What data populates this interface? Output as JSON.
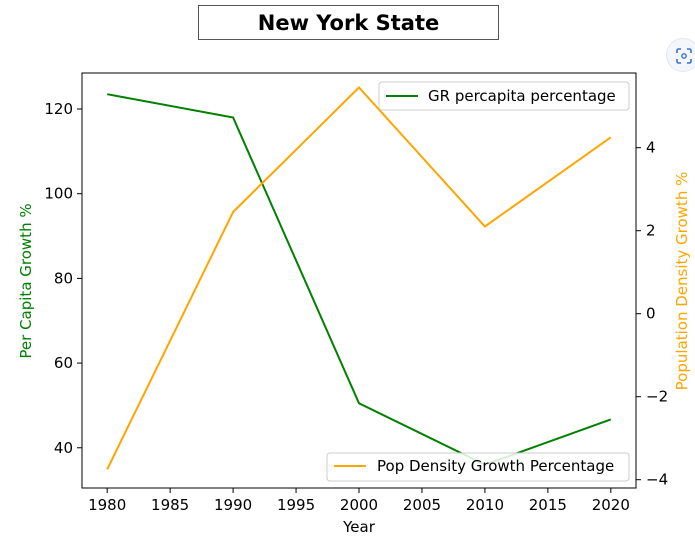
{
  "chart_data": {
    "type": "line",
    "title": "New York State",
    "xlabel": "Year",
    "ylabel_left": "Per Capita Growth %",
    "ylabel_right": "Population Density Growth %",
    "x": [
      1980,
      1990,
      2000,
      2010,
      2020
    ],
    "x_ticks": [
      "1980",
      "1985",
      "1990",
      "1995",
      "2000",
      "2005",
      "2010",
      "2015",
      "2020"
    ],
    "xlim": [
      1978,
      2022
    ],
    "left_axis": {
      "ylim": [
        30.5,
        128.5
      ],
      "ticks": [
        "40",
        "60",
        "80",
        "100",
        "120"
      ]
    },
    "right_axis": {
      "ylim": [
        -4.2,
        5.8
      ],
      "ticks": [
        "−4",
        "−2",
        "0",
        "2",
        "4"
      ]
    },
    "series": [
      {
        "name": "GR percapita percentage",
        "axis": "left",
        "color": "#008000",
        "values": [
          123.5,
          118,
          50.5,
          36,
          46.7
        ]
      },
      {
        "name": "Pop Density Growth Percentage",
        "axis": "right",
        "color": "#FFA500",
        "values": [
          -3.75,
          2.45,
          5.45,
          2.1,
          4.25
        ]
      }
    ],
    "legend_placement": [
      "upper right",
      "lower right"
    ],
    "grid": false
  },
  "colors": {
    "left_axis_label": "#008000",
    "right_axis_label": "#FFA500"
  },
  "icons": {
    "corner": "scan-icon"
  }
}
